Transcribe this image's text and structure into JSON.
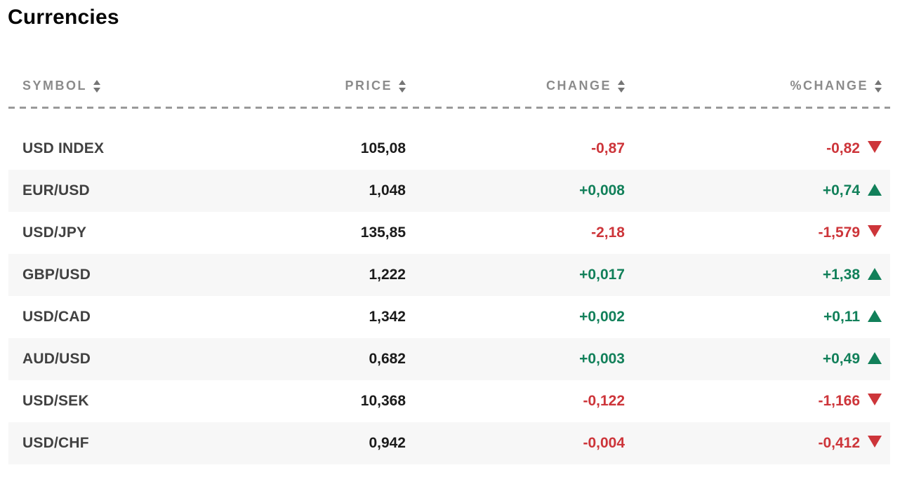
{
  "page": {
    "title": "Currencies"
  },
  "table": {
    "columns": [
      {
        "key": "symbol",
        "label": "SYMBOL",
        "sortable": true
      },
      {
        "key": "price",
        "label": "PRICE",
        "sortable": true
      },
      {
        "key": "change",
        "label": "CHANGE",
        "sortable": true
      },
      {
        "key": "pct_change",
        "label": "%CHANGE",
        "sortable": true
      }
    ],
    "rows": [
      {
        "symbol": "USD INDEX",
        "price": "105,08",
        "change": "-0,87",
        "pct_change": "-0,82",
        "trend": "down"
      },
      {
        "symbol": "EUR/USD",
        "price": "1,048",
        "change": "+0,008",
        "pct_change": "+0,74",
        "trend": "up"
      },
      {
        "symbol": "USD/JPY",
        "price": "135,85",
        "change": "-2,18",
        "pct_change": "-1,579",
        "trend": "down"
      },
      {
        "symbol": "GBP/USD",
        "price": "1,222",
        "change": "+0,017",
        "pct_change": "+1,38",
        "trend": "up"
      },
      {
        "symbol": "USD/CAD",
        "price": "1,342",
        "change": "+0,002",
        "pct_change": "+0,11",
        "trend": "up"
      },
      {
        "symbol": "AUD/USD",
        "price": "0,682",
        "change": "+0,003",
        "pct_change": "+0,49",
        "trend": "up"
      },
      {
        "symbol": "USD/SEK",
        "price": "10,368",
        "change": "-0,122",
        "pct_change": "-1,166",
        "trend": "down"
      },
      {
        "symbol": "USD/CHF",
        "price": "0,942",
        "change": "-0,004",
        "pct_change": "-0,412",
        "trend": "down"
      }
    ]
  },
  "icons": {
    "sort": "sort-arrows-icon",
    "up": "up-triangle-icon",
    "down": "down-triangle-icon"
  },
  "colors": {
    "positive": "#12805a",
    "negative": "#cd353a",
    "header_text": "#8b8b8b",
    "symbol_text": "#414141",
    "price_text": "#1b1b1b",
    "row_alt_bg": "#f7f7f7",
    "divider": "#9a9a9a"
  }
}
